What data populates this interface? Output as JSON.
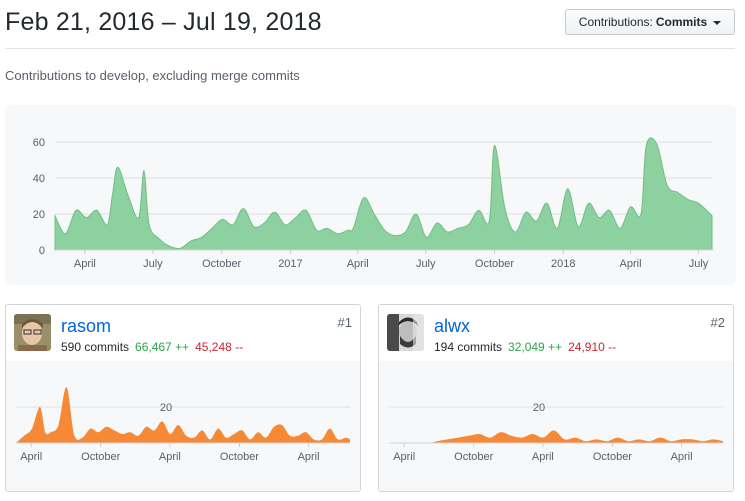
{
  "header": {
    "date_range": "Feb 21, 2016 – Jul 19, 2018",
    "contributions_label": "Contributions:",
    "contributions_value": "Commits"
  },
  "subtitle": "Contributions to develop, excluding merge commits",
  "colors": {
    "main_area": "#8dd1a0",
    "main_line": "#6fbf86",
    "user_area": "#f68935",
    "additions": "#28a745",
    "deletions": "#cb2431",
    "link": "#0366d6"
  },
  "chart_data": [
    {
      "type": "area",
      "ylim": [
        0,
        60
      ],
      "yticks": [
        "0",
        "20",
        "40",
        "60"
      ],
      "x_tick_labels": [
        "April",
        "July",
        "October",
        "2017",
        "April",
        "July",
        "October",
        "2018",
        "April",
        "July"
      ],
      "x": [
        "2016-02-21",
        "2016-03-06",
        "2016-03-20",
        "2016-04-03",
        "2016-04-17",
        "2016-05-01",
        "2016-05-08",
        "2016-05-15",
        "2016-05-29",
        "2016-06-12",
        "2016-06-19",
        "2016-06-26",
        "2016-07-10",
        "2016-07-24",
        "2016-08-07",
        "2016-08-21",
        "2016-09-04",
        "2016-09-18",
        "2016-10-02",
        "2016-10-16",
        "2016-10-30",
        "2016-11-13",
        "2016-11-27",
        "2016-12-11",
        "2016-12-25",
        "2017-01-08",
        "2017-01-22",
        "2017-02-05",
        "2017-02-19",
        "2017-03-05",
        "2017-03-19",
        "2017-03-26",
        "2017-04-09",
        "2017-04-23",
        "2017-05-07",
        "2017-05-21",
        "2017-06-04",
        "2017-06-18",
        "2017-07-02",
        "2017-07-16",
        "2017-07-30",
        "2017-08-13",
        "2017-08-27",
        "2017-09-10",
        "2017-09-24",
        "2017-10-01",
        "2017-10-15",
        "2017-10-29",
        "2017-11-12",
        "2017-11-26",
        "2017-12-10",
        "2017-12-24",
        "2018-01-07",
        "2018-01-21",
        "2018-02-04",
        "2018-02-18",
        "2018-03-04",
        "2018-03-18",
        "2018-04-01",
        "2018-04-15",
        "2018-04-22",
        "2018-05-06",
        "2018-05-20",
        "2018-06-03",
        "2018-06-17",
        "2018-07-01",
        "2018-07-19"
      ],
      "series": [
        {
          "values": [
            19,
            9,
            22,
            18,
            22,
            14,
            31,
            46,
            30,
            18,
            44,
            14,
            6,
            2,
            1,
            5,
            7,
            12,
            17,
            14,
            23,
            13,
            15,
            21,
            14,
            18,
            22,
            11,
            12,
            9,
            11,
            12,
            29,
            20,
            11,
            8,
            10,
            20,
            7,
            15,
            10,
            12,
            14,
            22,
            16,
            58,
            23,
            10,
            21,
            16,
            26,
            12,
            34,
            13,
            26,
            18,
            22,
            12,
            24,
            20,
            58,
            59,
            36,
            32,
            28,
            26,
            19
          ]
        }
      ]
    },
    {
      "type": "area",
      "ylim": [
        0,
        40
      ],
      "yticks": [
        "20"
      ],
      "x_tick_labels": [
        "April",
        "October",
        "April",
        "October",
        "April"
      ],
      "x": [
        "2016-02-21",
        "2016-03-13",
        "2016-04-03",
        "2016-04-24",
        "2016-05-08",
        "2016-05-22",
        "2016-06-12",
        "2016-07-03",
        "2016-07-24",
        "2016-08-14",
        "2016-09-04",
        "2016-09-25",
        "2016-10-16",
        "2016-11-06",
        "2016-11-27",
        "2016-12-18",
        "2017-01-08",
        "2017-01-29",
        "2017-02-19",
        "2017-03-12",
        "2017-04-02",
        "2017-04-23",
        "2017-05-14",
        "2017-06-04",
        "2017-06-25",
        "2017-07-16",
        "2017-08-06",
        "2017-08-27",
        "2017-09-17",
        "2017-10-08",
        "2017-10-29",
        "2017-11-19",
        "2017-12-10",
        "2017-12-31",
        "2018-01-21",
        "2018-02-11",
        "2018-03-04",
        "2018-03-25",
        "2018-04-15",
        "2018-05-06",
        "2018-05-27",
        "2018-06-17",
        "2018-07-08",
        "2018-07-19"
      ],
      "series": [
        {
          "name": "rasom",
          "values": [
            0,
            4,
            8,
            20,
            6,
            6,
            10,
            31,
            4,
            3,
            8,
            6,
            9,
            7,
            5,
            6,
            4,
            9,
            7,
            12,
            5,
            10,
            4,
            3,
            7,
            2,
            8,
            3,
            5,
            7,
            2,
            6,
            3,
            9,
            10,
            4,
            4,
            6,
            2,
            2,
            8,
            2,
            3,
            2
          ]
        }
      ]
    },
    {
      "type": "area",
      "ylim": [
        0,
        40
      ],
      "yticks": [
        "20"
      ],
      "x_tick_labels": [
        "April",
        "October",
        "April",
        "October",
        "April"
      ],
      "x": [
        "2016-02-21",
        "2016-05-29",
        "2016-06-26",
        "2016-07-24",
        "2016-08-21",
        "2016-09-18",
        "2016-10-16",
        "2016-11-13",
        "2016-12-11",
        "2017-01-08",
        "2017-02-05",
        "2017-03-05",
        "2017-04-02",
        "2017-04-30",
        "2017-05-28",
        "2017-06-25",
        "2017-07-23",
        "2017-08-20",
        "2017-09-17",
        "2017-10-15",
        "2017-11-12",
        "2017-12-10",
        "2018-01-07",
        "2018-02-04",
        "2018-03-04",
        "2018-04-01",
        "2018-04-29",
        "2018-05-27",
        "2018-06-24",
        "2018-07-19"
      ],
      "series": [
        {
          "name": "alwx",
          "values": [
            0,
            0,
            1,
            2,
            3,
            4,
            5,
            3,
            6,
            4,
            3,
            5,
            3,
            7,
            2,
            3,
            1,
            2,
            1,
            3,
            1,
            2,
            1,
            3,
            1,
            2,
            2,
            1,
            2,
            1
          ]
        }
      ]
    }
  ],
  "contributors": [
    {
      "username": "rasom",
      "rank": "#1",
      "commits": "590 commits",
      "additions": "66,467 ++",
      "deletions": "45,248 --"
    },
    {
      "username": "alwx",
      "rank": "#2",
      "commits": "194 commits",
      "additions": "32,049 ++",
      "deletions": "24,910 --"
    }
  ]
}
